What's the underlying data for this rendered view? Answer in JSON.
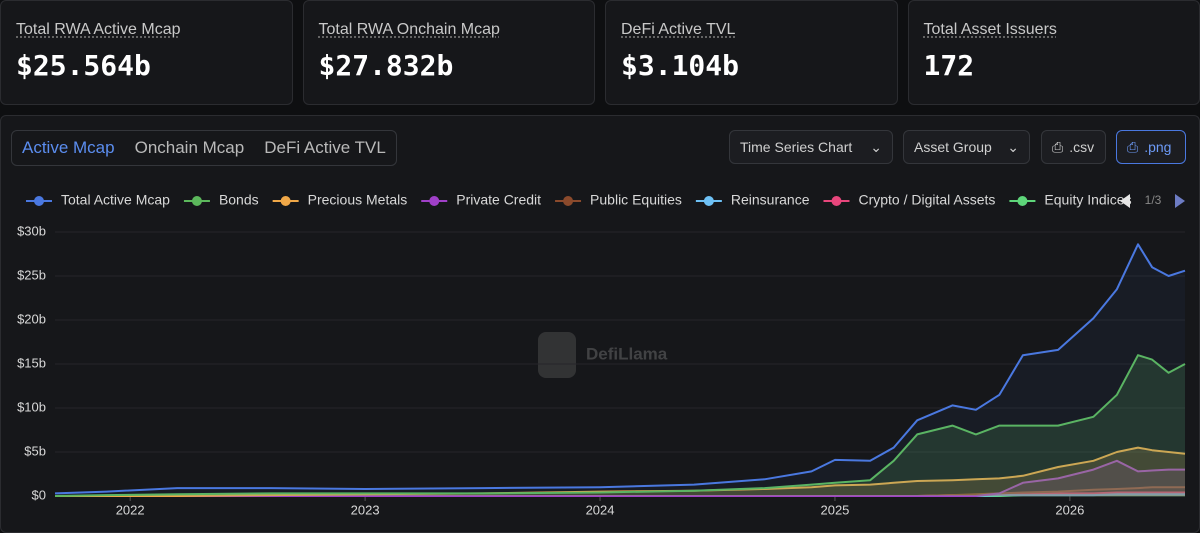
{
  "stats": [
    {
      "label": "Total RWA Active Mcap",
      "value": "$25.564b"
    },
    {
      "label": "Total RWA Onchain Mcap",
      "value": "$27.832b"
    },
    {
      "label": "DeFi Active TVL",
      "value": "$3.104b"
    },
    {
      "label": "Total Asset Issuers",
      "value": "172"
    }
  ],
  "tabs": [
    "Active Mcap",
    "Onchain Mcap",
    "DeFi Active TVL"
  ],
  "controls": {
    "chart_type": "Time Series Chart",
    "grouping": "Asset Group",
    "csv": ".csv",
    "png": ".png"
  },
  "chart_data": {
    "type": "line",
    "watermark": "DefiLlama",
    "legend_page": "1/3",
    "x": [
      2021.68,
      2021.9,
      2022.2,
      2022.6,
      2023.0,
      2023.5,
      2024.0,
      2024.4,
      2024.7,
      2024.9,
      2025.0,
      2025.15,
      2025.25,
      2025.35,
      2025.5,
      2025.6,
      2025.7,
      2025.8,
      2025.95,
      2026.1,
      2026.2,
      2026.29,
      2026.35,
      2026.42,
      2026.49
    ],
    "xlim": [
      2021.68,
      2026.49
    ],
    "xticks": [
      2022,
      2023,
      2024,
      2025,
      2026
    ],
    "ylim": [
      0,
      30
    ],
    "yticks": [
      {
        "value": 0,
        "label": "$0"
      },
      {
        "value": 5,
        "label": "$5b"
      },
      {
        "value": 10,
        "label": "$10b"
      },
      {
        "value": 15,
        "label": "$15b"
      },
      {
        "value": 20,
        "label": "$20b"
      },
      {
        "value": 25,
        "label": "$25b"
      },
      {
        "value": 30,
        "label": "$30b"
      }
    ],
    "series": [
      {
        "name": "Total Active Mcap",
        "color": "#4a78e0",
        "values": [
          0.3,
          0.5,
          0.9,
          0.9,
          0.8,
          0.9,
          1.0,
          1.3,
          1.9,
          2.8,
          4.1,
          4.0,
          5.5,
          8.6,
          10.3,
          9.8,
          11.5,
          16.0,
          16.6,
          20.2,
          23.5,
          28.6,
          26.0,
          25.0,
          25.6
        ]
      },
      {
        "name": "Bonds",
        "color": "#5cb85c",
        "values": [
          0,
          0.1,
          0.2,
          0.3,
          0.3,
          0.3,
          0.4,
          0.6,
          0.9,
          1.3,
          1.5,
          1.8,
          4.0,
          7.0,
          8.0,
          7.0,
          8.0,
          8.0,
          8.0,
          9.0,
          11.5,
          16.0,
          15.5,
          14.0,
          15.0
        ]
      },
      {
        "name": "Precious Metals",
        "color": "#f0a848",
        "values": [
          0,
          0,
          0,
          0.1,
          0.2,
          0.3,
          0.5,
          0.6,
          0.8,
          1.0,
          1.2,
          1.3,
          1.5,
          1.7,
          1.8,
          1.9,
          2.0,
          2.3,
          3.3,
          4.0,
          5.0,
          5.5,
          5.2,
          5.0,
          4.8
        ]
      },
      {
        "name": "Private Credit",
        "color": "#a040c8",
        "values": [
          0,
          0,
          0,
          0,
          0,
          0,
          0,
          0,
          0,
          0,
          0,
          0,
          0,
          0,
          0,
          0,
          0.3,
          1.5,
          2.0,
          3.0,
          4.0,
          2.8,
          2.9,
          3.0,
          3.0
        ]
      },
      {
        "name": "Public Equities",
        "color": "#8b4a2c",
        "values": [
          0,
          0,
          0,
          0,
          0,
          0,
          0,
          0,
          0,
          0,
          0,
          0,
          0,
          0,
          0.1,
          0.2,
          0.3,
          0.4,
          0.5,
          0.7,
          0.8,
          0.9,
          1.0,
          1.0,
          1.0
        ]
      },
      {
        "name": "Reinsurance",
        "color": "#6ec1f5",
        "values": [
          0,
          0,
          0,
          0,
          0,
          0,
          0,
          0,
          0,
          0,
          0,
          0,
          0,
          0,
          0,
          0,
          0.1,
          0.1,
          0.1,
          0.1,
          0.2,
          0.2,
          0.2,
          0.2,
          0.2
        ]
      },
      {
        "name": "Crypto / Digital Assets",
        "color": "#e8467c",
        "values": [
          0,
          0,
          0,
          0,
          0,
          0,
          0,
          0,
          0,
          0,
          0,
          0,
          0,
          0,
          0.1,
          0.1,
          0.2,
          0.2,
          0.3,
          0.3,
          0.4,
          0.4,
          0.4,
          0.4,
          0.4
        ]
      },
      {
        "name": "Equity Indices",
        "color": "#5ed67a",
        "values": [
          0,
          0,
          0,
          0,
          0,
          0,
          0,
          0,
          0,
          0,
          0,
          0,
          0,
          0,
          0,
          0,
          0,
          0.1,
          0.1,
          0.1,
          0.1,
          0.1,
          0.1,
          0.1,
          0.1
        ]
      }
    ]
  }
}
